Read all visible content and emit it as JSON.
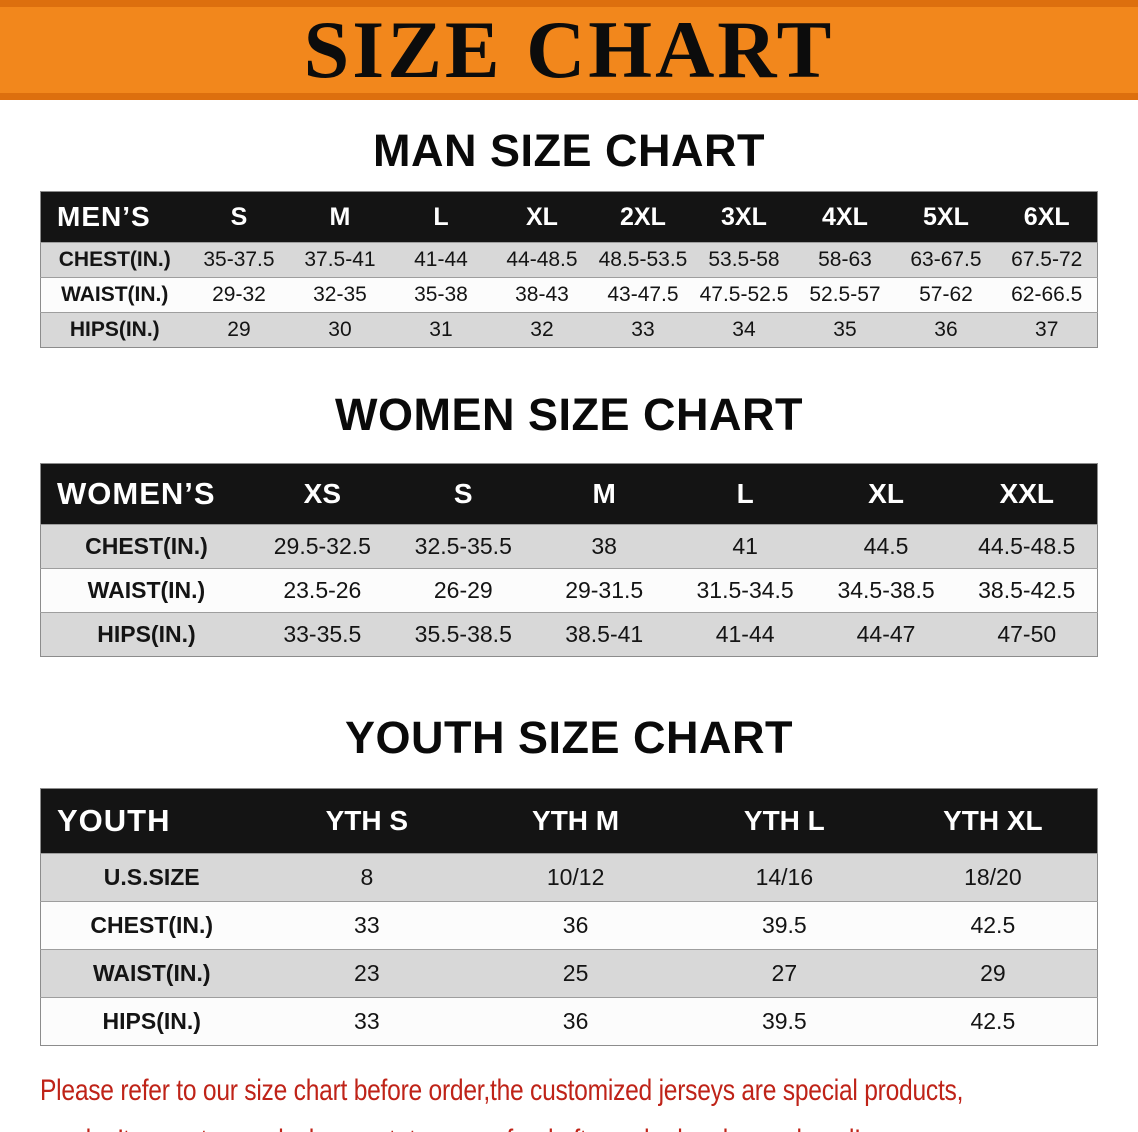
{
  "banner": {
    "title": "SIZE CHART"
  },
  "chart_data": [
    {
      "type": "table",
      "title": "MAN SIZE CHART",
      "corner_label": "MEN’S",
      "columns": [
        "S",
        "M",
        "L",
        "XL",
        "2XL",
        "3XL",
        "4XL",
        "5XL",
        "6XL"
      ],
      "rows": [
        {
          "label": "CHEST(IN.)",
          "values": [
            "35-37.5",
            "37.5-41",
            "41-44",
            "44-48.5",
            "48.5-53.5",
            "53.5-58",
            "58-63",
            "63-67.5",
            "67.5-72"
          ]
        },
        {
          "label": "WAIST(IN.)",
          "values": [
            "29-32",
            "32-35",
            "35-38",
            "38-43",
            "43-47.5",
            "47.5-52.5",
            "52.5-57",
            "57-62",
            "62-66.5"
          ]
        },
        {
          "label": "HIPS(IN.)",
          "values": [
            "29",
            "30",
            "31",
            "32",
            "33",
            "34",
            "35",
            "36",
            "37"
          ]
        }
      ]
    },
    {
      "type": "table",
      "title": "WOMEN SIZE CHART",
      "corner_label": "WOMEN’S",
      "columns": [
        "XS",
        "S",
        "M",
        "L",
        "XL",
        "XXL"
      ],
      "rows": [
        {
          "label": "CHEST(IN.)",
          "values": [
            "29.5-32.5",
            "32.5-35.5",
            "38",
            "41",
            "44.5",
            "44.5-48.5"
          ]
        },
        {
          "label": "WAIST(IN.)",
          "values": [
            "23.5-26",
            "26-29",
            "29-31.5",
            "31.5-34.5",
            "34.5-38.5",
            "38.5-42.5"
          ]
        },
        {
          "label": "HIPS(IN.)",
          "values": [
            "33-35.5",
            "35.5-38.5",
            "38.5-41",
            "41-44",
            "44-47",
            "47-50"
          ]
        }
      ]
    },
    {
      "type": "table",
      "title": "YOUTH SIZE CHART",
      "corner_label": "YOUTH",
      "columns": [
        "YTH S",
        "YTH M",
        "YTH L",
        "YTH XL"
      ],
      "rows": [
        {
          "label": "U.S.SIZE",
          "values": [
            "8",
            "10/12",
            "14/16",
            "18/20"
          ]
        },
        {
          "label": "CHEST(IN.)",
          "values": [
            "33",
            "36",
            "39.5",
            "42.5"
          ]
        },
        {
          "label": "WAIST(IN.)",
          "values": [
            "23",
            "25",
            "27",
            "29"
          ]
        },
        {
          "label": "HIPS(IN.)",
          "values": [
            "33",
            "36",
            "39.5",
            "42.5"
          ]
        }
      ]
    }
  ],
  "footer": {
    "line1": "Please refer to our size chart before order,the customized jerseys are special products,",
    "line2": "we don’t accept cancel, change, teturn or refund after order has been placed!"
  },
  "colors": {
    "banner_orange": "#F2871C",
    "banner_border": "#DD6F0E",
    "header_black": "#141414",
    "row_gray": "#D8D8D8",
    "row_white": "#FCFCFC",
    "footer_red": "#BF2318"
  }
}
